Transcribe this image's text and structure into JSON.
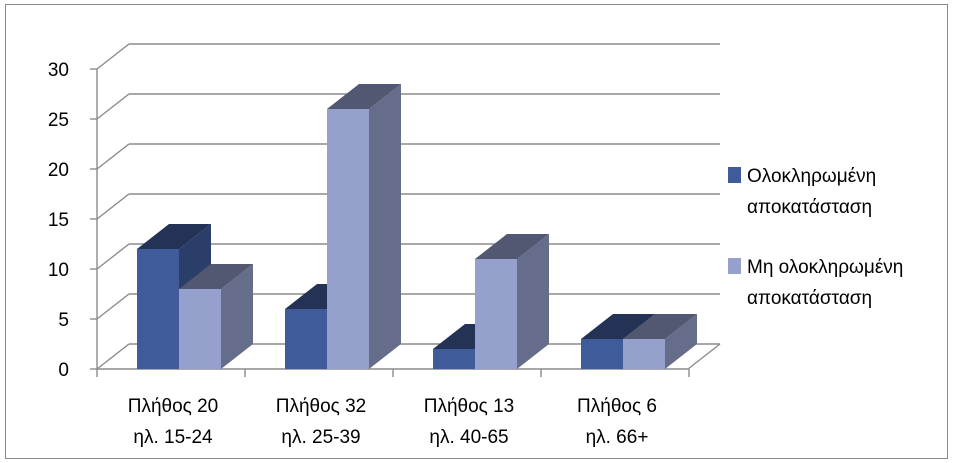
{
  "chart_data": {
    "type": "bar",
    "categories": [
      [
        "Πλήθος 20",
        "ηλ. 15-24"
      ],
      [
        "Πλήθος 32",
        "ηλ. 25-39"
      ],
      [
        "Πλήθος 13",
        "ηλ. 40-65"
      ],
      [
        "Πλήθος 6",
        "ηλ. 66+"
      ]
    ],
    "series": [
      {
        "name": [
          "Ολοκληρωμένη",
          "αποκατάσταση"
        ],
        "values": [
          12,
          6,
          2,
          3
        ],
        "color": "#3f5b9a"
      },
      {
        "name": [
          "Μη ολοκληρωμένη",
          "αποκατάσταση"
        ],
        "values": [
          8,
          26,
          11,
          3
        ],
        "color": "#95a0cd"
      }
    ],
    "ylim": [
      0,
      30
    ],
    "yticks": [
      0,
      5,
      10,
      15,
      20,
      25,
      30
    ],
    "grid": true,
    "legend_position": "right",
    "title": "",
    "xlabel": "",
    "ylabel": ""
  }
}
